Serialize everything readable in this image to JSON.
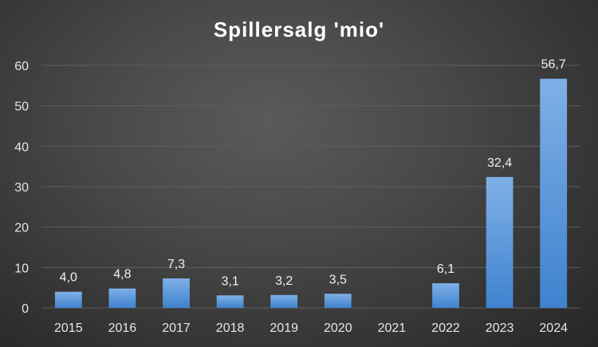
{
  "chart_data": {
    "type": "bar",
    "title": "Spillersalg 'mio'",
    "categories": [
      "2015",
      "2016",
      "2017",
      "2018",
      "2019",
      "2020",
      "2021",
      "2022",
      "2023",
      "2024"
    ],
    "values": [
      4.0,
      4.8,
      7.3,
      3.1,
      3.2,
      3.5,
      null,
      6.1,
      32.4,
      56.7
    ],
    "data_labels": [
      "4,0",
      "4,8",
      "7,3",
      "3,1",
      "3,2",
      "3,5",
      "",
      "6,1",
      "32,4",
      "56,7"
    ],
    "yticks": [
      "0",
      "10",
      "20",
      "30",
      "40",
      "50",
      "60"
    ],
    "ylim": [
      0,
      60
    ],
    "xlabel": "",
    "ylabel": "",
    "grid": true,
    "legend": "none",
    "colors": {
      "bar_top": "#7fb0e6",
      "bar_bottom": "#3f82cf",
      "grid": "#5e5e5e",
      "text": "#e6e6e6"
    }
  }
}
